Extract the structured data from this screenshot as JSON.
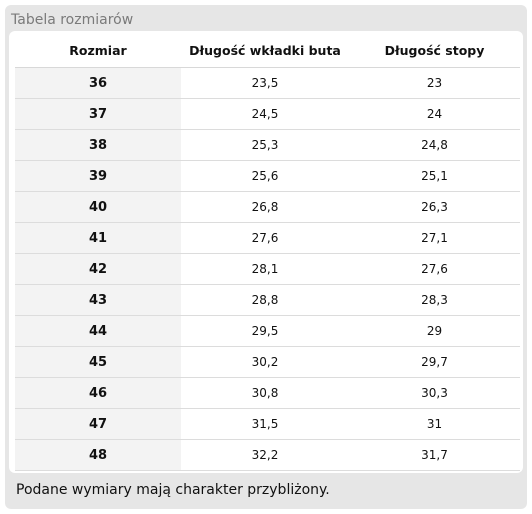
{
  "panel": {
    "title": "Tabela rozmiarów",
    "footnote": "Podane wymiary mają charakter przybliżony."
  },
  "table": {
    "headers": [
      "Rozmiar",
      "Długość wkładki buta",
      "Długość stopy"
    ],
    "rows": [
      [
        "36",
        "23,5",
        "23"
      ],
      [
        "37",
        "24,5",
        "24"
      ],
      [
        "38",
        "25,3",
        "24,8"
      ],
      [
        "39",
        "25,6",
        "25,1"
      ],
      [
        "40",
        "26,8",
        "26,3"
      ],
      [
        "41",
        "27,6",
        "27,1"
      ],
      [
        "42",
        "28,1",
        "27,6"
      ],
      [
        "43",
        "28,8",
        "28,3"
      ],
      [
        "44",
        "29,5",
        "29"
      ],
      [
        "45",
        "30,2",
        "29,7"
      ],
      [
        "46",
        "30,8",
        "30,3"
      ],
      [
        "47",
        "31,5",
        "31"
      ],
      [
        "48",
        "32,2",
        "31,7"
      ]
    ]
  },
  "colors": {
    "panel_bg": "#e6e6e6",
    "title_text": "#7a7a7a",
    "size_column_bg": "#f3f3f3",
    "row_divider": "#dcdcdc"
  }
}
